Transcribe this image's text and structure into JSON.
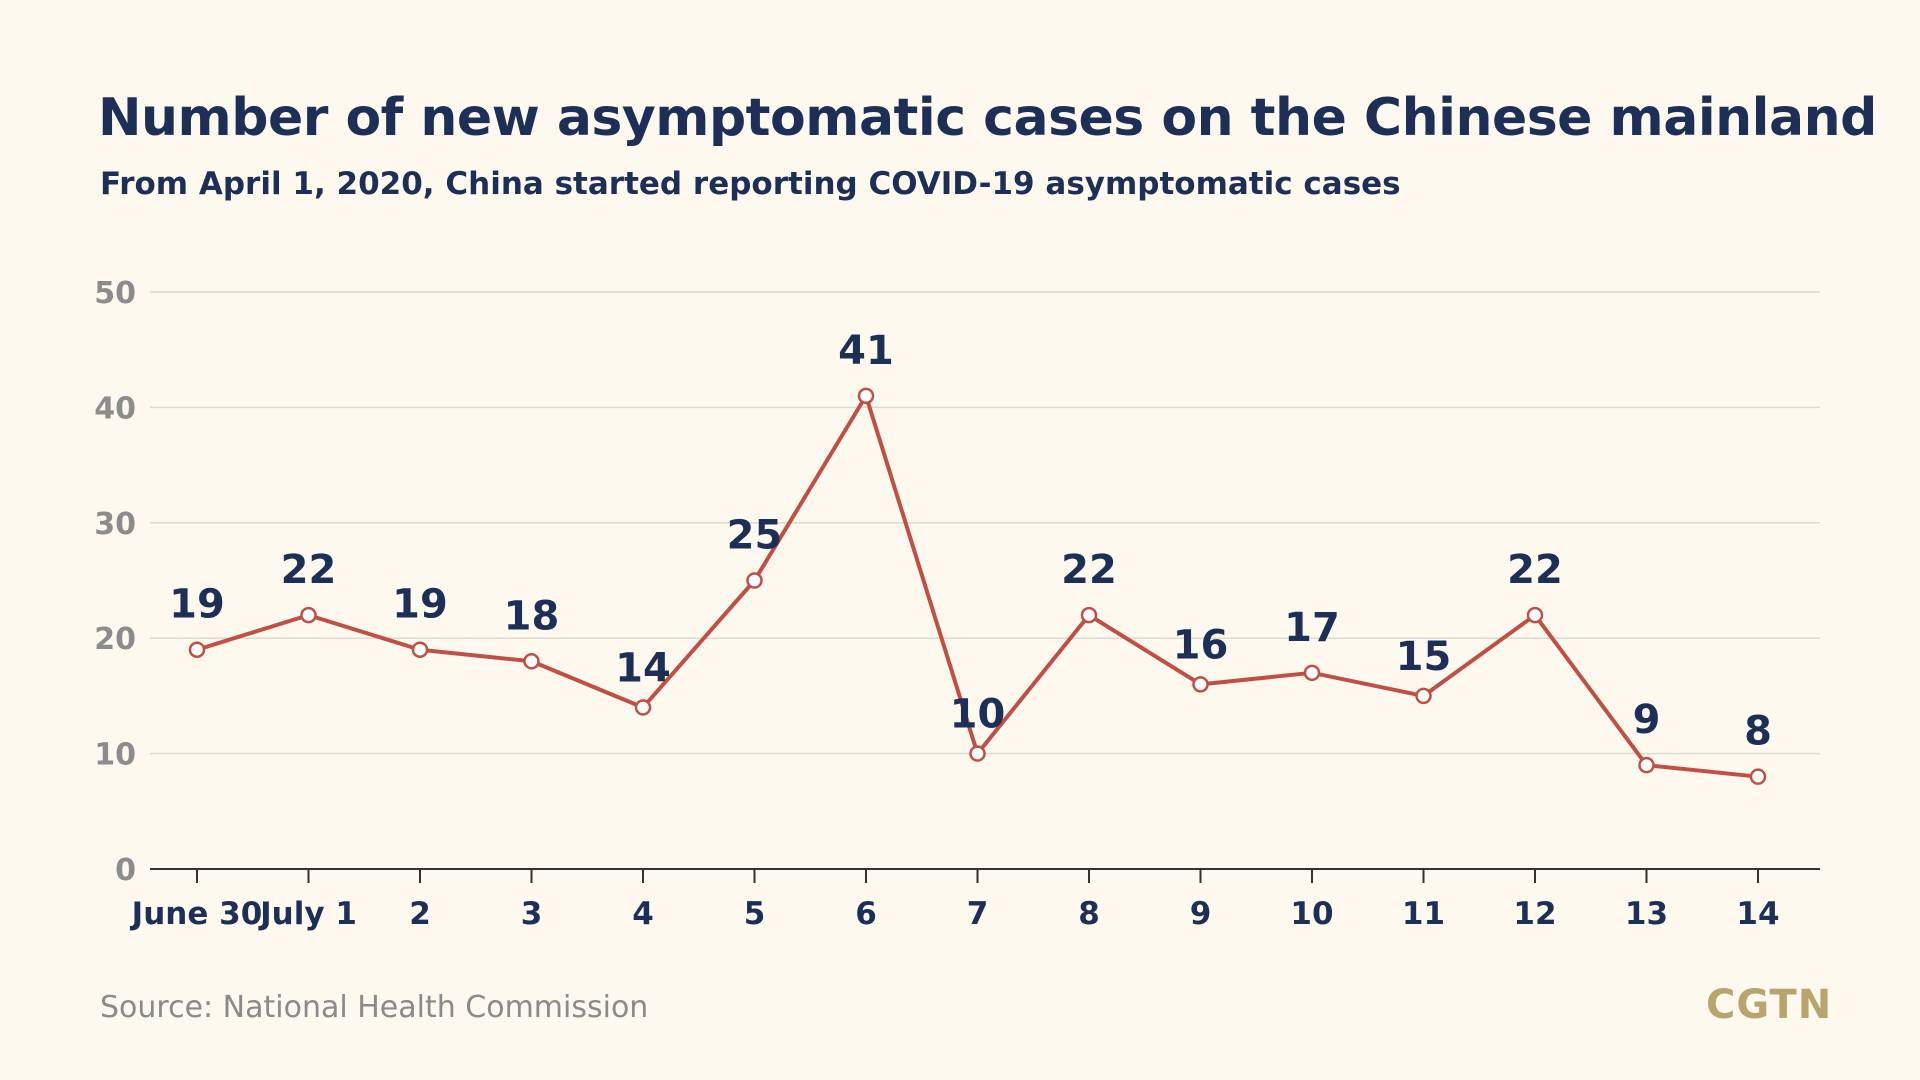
{
  "title": "Number of new asymptomatic cases on the Chinese mainland",
  "subtitle": "From April 1, 2020, China started reporting COVID-19 asymptomatic cases",
  "source": "Source: National Health Commission",
  "logo": "CGTN",
  "colors": {
    "background": "#fdf9ee",
    "line": "#c14f45",
    "title": "#1d2f57",
    "grid": "#dedbd2",
    "logo": "#b8a46c"
  },
  "chart_data": {
    "type": "line",
    "title": "Number of new asymptomatic cases on the Chinese mainland",
    "subtitle": "From April 1, 2020, China started reporting COVID-19 asymptomatic cases",
    "categories": [
      "June 30",
      "July 1",
      "2",
      "3",
      "4",
      "5",
      "6",
      "7",
      "8",
      "9",
      "10",
      "11",
      "12",
      "13",
      "14"
    ],
    "values": [
      19,
      22,
      19,
      18,
      14,
      25,
      41,
      10,
      22,
      16,
      17,
      15,
      22,
      9,
      8
    ],
    "ylim": [
      0,
      50
    ],
    "yticks": [
      0,
      10,
      20,
      30,
      40,
      50
    ],
    "grid": true,
    "xlabel": "",
    "ylabel": ""
  }
}
